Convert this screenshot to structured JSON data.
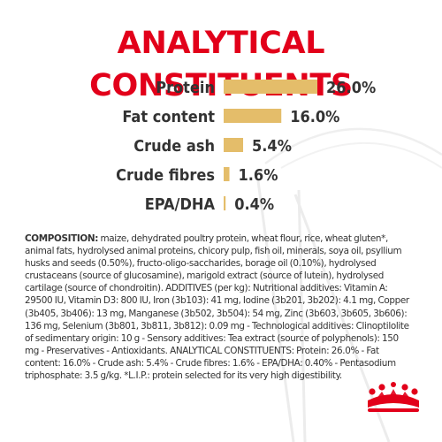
{
  "title": "ANALYTICAL CONSTITUENTS",
  "chart_data": {
    "type": "bar",
    "orientation": "horizontal",
    "categories": [
      "Protein",
      "Fat content",
      "Crude ash",
      "Crude fibres",
      "EPA/DHA"
    ],
    "values": [
      26.0,
      16.0,
      5.4,
      1.6,
      0.4
    ],
    "value_labels": [
      "26.0%",
      "16.0%",
      "5.4%",
      "1.6%",
      "0.4%"
    ],
    "unit": "%",
    "title": "ANALYTICAL CONSTITUENTS",
    "xlabel": "",
    "ylabel": "",
    "grid": false,
    "bar_color": "#e4bd6a",
    "label_color": "#333333"
  },
  "composition": {
    "heading": "COMPOSITION:",
    "text": "maize, dehydrated poultry protein, wheat flour, rice, wheat gluten*, animal fats, hydrolysed animal proteins, chicory pulp, fish oil, minerals, soya oil, psyllium husks and seeds (0.50%), fructo-oligo-saccharides, borage oil (0.10%), hydrolysed crustaceans (source of glucosamine), marigold extract (source of lutein), hydrolysed cartilage (source of chondroitin). ADDITIVES (per kg): Nutritional additives: Vitamin A: 29500 IU, Vitamin D3: 800 IU, Iron (3b103): 41 mg, Iodine (3b201, 3b202): 4.1 mg, Copper (3b405, 3b406): 13 mg, Manganese (3b502, 3b504): 54 mg, Zinc (3b603, 3b605, 3b606): 136 mg, Selenium (3b801, 3b811, 3b812): 0.09 mg - Technological additives: Clinoptilolite of sedimentary origin: 10 g - Sensory additives: Tea extract (source of polyphenols): 150 mg - Preservatives - Antioxidants. ANALYTICAL CONSTITUENTS: Protein: 26.0% - Fat content: 16.0% - Crude ash: 5.4% - Crude fibres: 1.6% - EPA/DHA: 0.40% - Pentasodium triphosphate: 3.5 g/kg. *L.I.P.: protein selected for its very high digestibility."
  },
  "colors": {
    "brand_red": "#e2001a",
    "decor_line": "#e9e9e9"
  },
  "logo": {
    "icon": "royal-crown-icon",
    "color": "#e2001a"
  }
}
